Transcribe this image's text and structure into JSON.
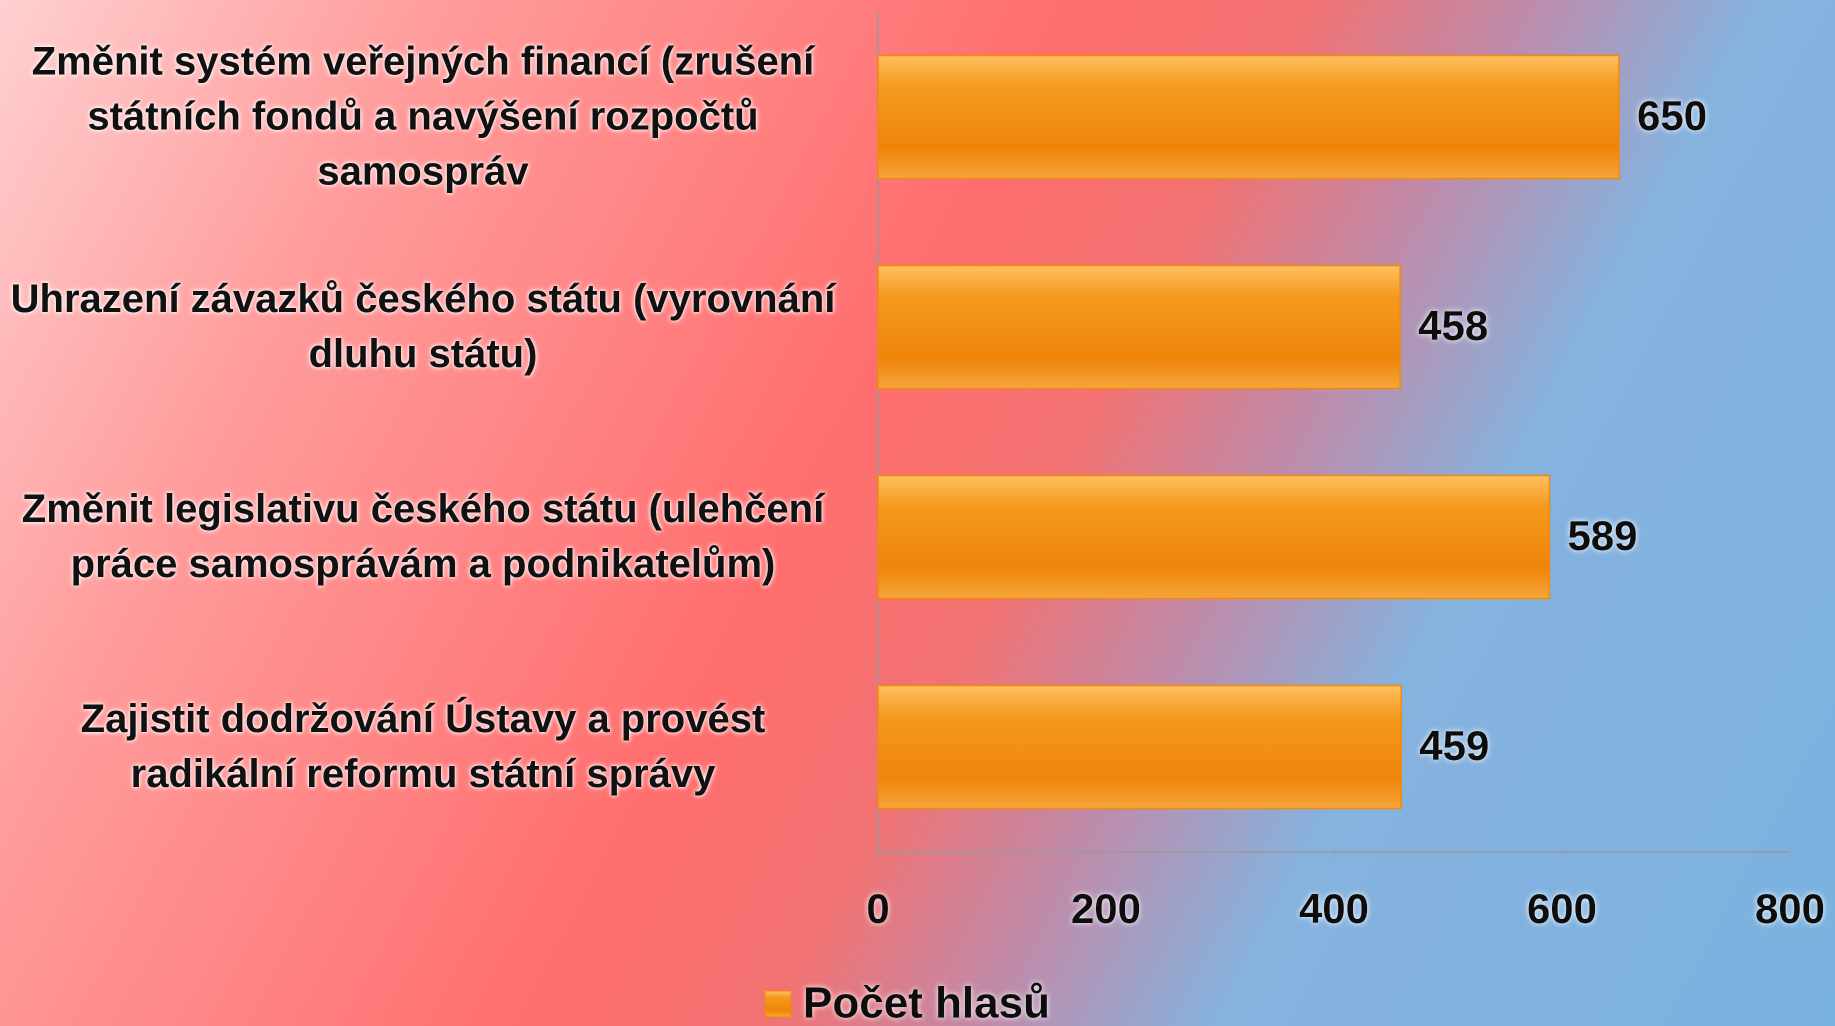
{
  "chart_data": {
    "type": "bar",
    "orientation": "horizontal",
    "categories": [
      "Změnit systém veřejných financí (zrušení státních fondů a navýšení rozpočtů samospráv",
      "Uhrazení závazků českého státu (vyrovnání dluhu státu)",
      "Změnit legislativu českého státu (ulehčení práce samosprávám a podnikatelům)",
      "Zajistit dodržování Ústavy a provést radikální reformu státní správy"
    ],
    "series": [
      {
        "name": "Počet hlasů",
        "color": "#f08a0c",
        "values": [
          650,
          458,
          589,
          459
        ]
      }
    ],
    "xlim": [
      0,
      800
    ],
    "xticks": [
      0,
      200,
      400,
      600,
      800
    ],
    "grid": false,
    "legend": "bottom"
  }
}
